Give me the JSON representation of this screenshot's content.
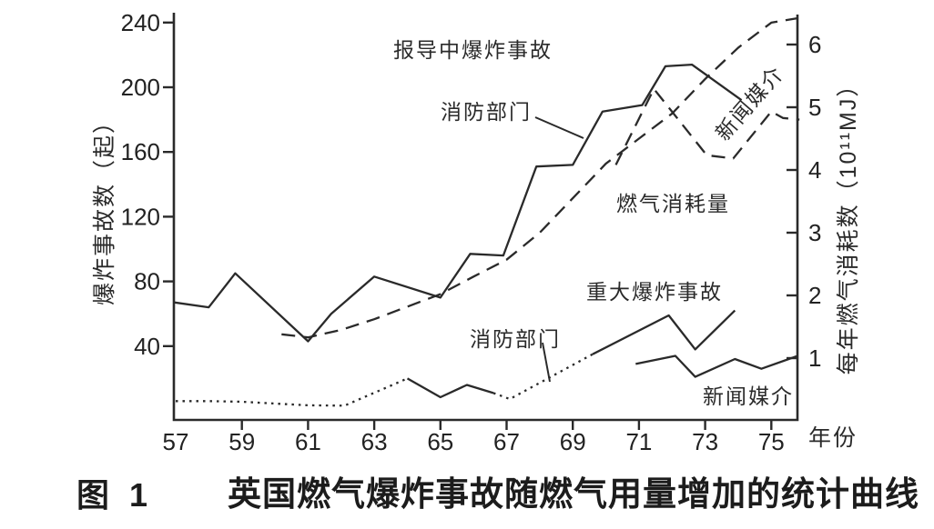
{
  "figure": {
    "caption_number": "图 1",
    "caption": "英国燃气爆炸事故随燃气用量增加的统计曲线"
  },
  "colors": {
    "background": "#ffffff",
    "ink": "#2a2a2a"
  },
  "chart_data": {
    "type": "line",
    "title": "",
    "x_axis": {
      "label": "年份",
      "ticks": [
        57,
        59,
        61,
        63,
        65,
        67,
        69,
        71,
        73,
        75
      ],
      "range": [
        57,
        75.8
      ]
    },
    "left_axis": {
      "label": "爆炸事故数（起）",
      "ticks": [
        240,
        200,
        160,
        120,
        80,
        40
      ],
      "range": [
        0,
        245
      ]
    },
    "right_axis": {
      "label": "每年燃气消耗数（10¹¹MJ）",
      "ticks": [
        6,
        5,
        4,
        3,
        2,
        1
      ],
      "range": [
        0,
        6.5
      ]
    },
    "annotations": {
      "reported_group": "报导中爆炸事故",
      "fire_top": "消防部门",
      "news_top": "新闻媒介",
      "gas": "燃气消耗量",
      "major_group": "重大爆炸事故",
      "fire_bottom": "消防部门",
      "news_bottom": "新闻媒介"
    },
    "legend_position": "inline-annotations",
    "grid": false,
    "series": [
      {
        "name": "报导中爆炸事故-消防部门",
        "axis": "left",
        "style": "solid",
        "points": [
          [
            56.95,
            67
          ],
          [
            58,
            64
          ],
          [
            58.8,
            85
          ],
          [
            61,
            43
          ],
          [
            61.7,
            60
          ],
          [
            63,
            83
          ],
          [
            65,
            70
          ],
          [
            65.9,
            97
          ],
          [
            66.9,
            96
          ],
          [
            67.9,
            151
          ],
          [
            69,
            152
          ],
          [
            69.9,
            185
          ],
          [
            71.1,
            189
          ],
          [
            71.8,
            213
          ],
          [
            72.6,
            214
          ],
          [
            74.1,
            192
          ]
        ]
      },
      {
        "name": "报导中爆炸事故-新闻媒介",
        "axis": "left",
        "style": "dash",
        "points": [
          [
            70.3,
            152
          ],
          [
            71.45,
            199
          ],
          [
            73.05,
            158
          ],
          [
            73.85,
            156
          ],
          [
            75.0,
            185
          ],
          [
            75.35,
            181
          ],
          [
            75.85,
            180
          ]
        ]
      },
      {
        "name": "燃气消耗量",
        "axis": "right",
        "style": "dash",
        "points": [
          [
            60.2,
            1.38
          ],
          [
            61,
            1.33
          ],
          [
            62,
            1.45
          ],
          [
            63,
            1.62
          ],
          [
            64,
            1.82
          ],
          [
            65,
            2.02
          ],
          [
            66,
            2.3
          ],
          [
            67,
            2.57
          ],
          [
            68,
            3.0
          ],
          [
            69,
            3.55
          ],
          [
            70,
            4.1
          ],
          [
            71,
            4.5
          ],
          [
            72,
            4.9
          ],
          [
            73,
            5.45
          ],
          [
            74,
            5.95
          ],
          [
            75,
            6.35
          ],
          [
            75.8,
            6.42
          ]
        ]
      },
      {
        "name": "重大爆炸事故-消防部门-段1",
        "axis": "left",
        "style": "dot",
        "points": [
          [
            57,
            6
          ],
          [
            58,
            6
          ],
          [
            59,
            5.6
          ],
          [
            60,
            4.5
          ],
          [
            61,
            3.4
          ],
          [
            62.1,
            3.2
          ],
          [
            64,
            20
          ]
        ]
      },
      {
        "name": "重大爆炸事故-消防部门-段2",
        "axis": "left",
        "style": "solid",
        "points": [
          [
            64,
            20
          ],
          [
            65,
            8.4
          ],
          [
            65.8,
            16
          ],
          [
            66.6,
            11
          ]
        ]
      },
      {
        "name": "重大爆炸事故-消防部门-段3",
        "axis": "left",
        "style": "dot",
        "points": [
          [
            66.6,
            11
          ],
          [
            67.1,
            7.3
          ],
          [
            69.6,
            35
          ]
        ]
      },
      {
        "name": "重大爆炸事故-消防部门-段4",
        "axis": "left",
        "style": "solid",
        "points": [
          [
            69.6,
            35
          ],
          [
            71.9,
            59
          ],
          [
            72.7,
            38
          ],
          [
            73.9,
            62
          ]
        ]
      },
      {
        "name": "重大爆炸事故-新闻媒介",
        "axis": "left",
        "style": "solid",
        "points": [
          [
            70.9,
            29
          ],
          [
            72.1,
            34
          ],
          [
            72.7,
            21
          ],
          [
            73.9,
            32
          ],
          [
            74.7,
            26
          ],
          [
            75.8,
            34
          ]
        ]
      }
    ]
  }
}
